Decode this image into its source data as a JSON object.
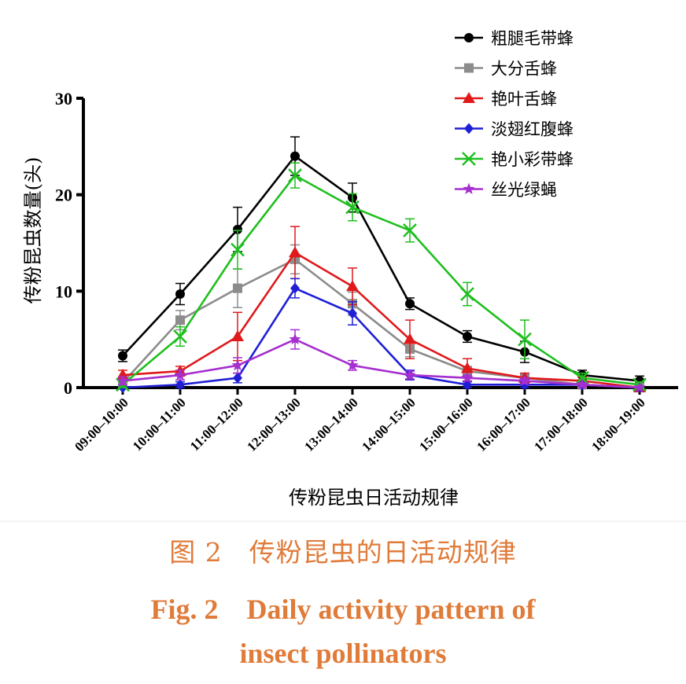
{
  "chart_data": {
    "type": "line",
    "xlabel": "传粉昆虫日活动规律",
    "ylabel": "传粉昆虫数量(头)",
    "ylim": [
      0,
      30
    ],
    "yticks": [
      0,
      10,
      20,
      30
    ],
    "categories": [
      "09:00–10:00",
      "10:00–11:00",
      "11:00–12:00",
      "12:00–13:00",
      "13:00–14:00",
      "14:00–15:00",
      "15:00–16:00",
      "16:00–17:00",
      "17:00–18:00",
      "18:00–19:00"
    ],
    "legend_position": "top-right",
    "grid": false,
    "series": [
      {
        "name": "粗腿毛带蜂",
        "color": "#000000",
        "marker": "circle",
        "values": [
          3.3,
          9.7,
          16.4,
          24.0,
          19.7,
          8.7,
          5.3,
          3.7,
          1.3,
          0.7
        ],
        "errors": [
          0.6,
          1.1,
          2.3,
          2.0,
          1.5,
          0.6,
          0.6,
          1.1,
          0.5,
          0.5
        ]
      },
      {
        "name": "大分舌蜂",
        "color": "#8c8c8c",
        "marker": "square",
        "values": [
          0.5,
          7.0,
          10.3,
          13.3,
          8.7,
          4.0,
          1.7,
          1.0,
          0.3,
          0.0
        ],
        "errors": [
          0.5,
          1.0,
          2.0,
          1.5,
          1.2,
          0.8,
          0.5,
          0.4,
          0.3,
          0.0
        ]
      },
      {
        "name": "艳叶舌蜂",
        "color": "#e0191b",
        "marker": "triangle",
        "values": [
          1.3,
          1.7,
          5.3,
          14.0,
          10.5,
          5.0,
          2.0,
          1.0,
          0.7,
          0.0
        ],
        "errors": [
          0.5,
          0.5,
          2.5,
          2.7,
          1.9,
          2.0,
          1.0,
          0.5,
          0.4,
          0.0
        ]
      },
      {
        "name": "淡翅红腹蜂",
        "color": "#1f1fd6",
        "marker": "diamond",
        "values": [
          0.0,
          0.3,
          1.0,
          10.3,
          7.7,
          1.3,
          0.3,
          0.3,
          0.3,
          0.0
        ],
        "errors": [
          0.0,
          0.3,
          0.5,
          1.0,
          1.2,
          0.5,
          0.3,
          0.3,
          0.2,
          0.0
        ]
      },
      {
        "name": "艳小彩带蜂",
        "color": "#1fbf1f",
        "marker": "x",
        "values": [
          0.3,
          5.3,
          14.3,
          22.0,
          18.7,
          16.3,
          9.7,
          5.0,
          1.0,
          0.3
        ],
        "errors": [
          0.3,
          1.0,
          2.0,
          1.3,
          1.4,
          1.2,
          1.2,
          2.0,
          0.5,
          0.3
        ]
      },
      {
        "name": "丝光绿蝇",
        "color": "#a52fcf",
        "marker": "star",
        "values": [
          0.7,
          1.3,
          2.3,
          5.0,
          2.3,
          1.3,
          1.0,
          0.7,
          0.3,
          0.0
        ],
        "errors": [
          0.4,
          0.5,
          0.8,
          1.0,
          0.5,
          0.4,
          0.3,
          0.3,
          0.2,
          0.0
        ]
      }
    ]
  },
  "caption": {
    "cn": "图 2　传粉昆虫的日活动规律",
    "en_line1": "Fig. 2　Daily activity pattern of",
    "en_line2": "insect pollinators"
  }
}
